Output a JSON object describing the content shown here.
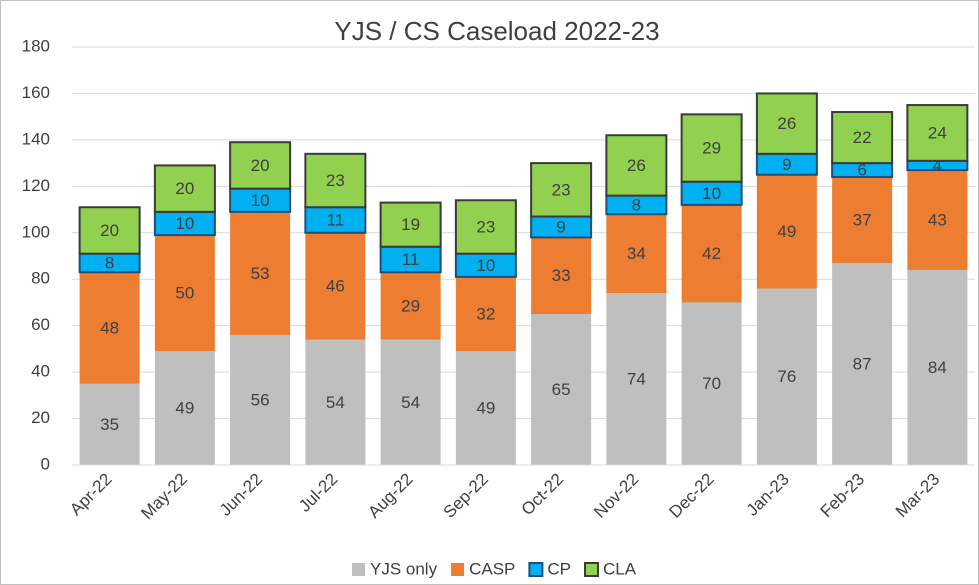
{
  "chart_data": {
    "type": "stacked_bar",
    "title": "YJS / CS Caseload 2022-23",
    "categories": [
      "Apr-22",
      "May-22",
      "Jun-22",
      "Jul-22",
      "Aug-22",
      "Sep-22",
      "Oct-22",
      "Nov-22",
      "Dec-22",
      "Jan-23",
      "Feb-23",
      "Mar-23"
    ],
    "series": [
      {
        "name": "YJS only",
        "color": "#bfbfbf",
        "values": [
          35,
          49,
          56,
          54,
          54,
          49,
          65,
          74,
          70,
          76,
          87,
          84
        ]
      },
      {
        "name": "CASP",
        "color": "#ed7d31",
        "values": [
          48,
          50,
          53,
          46,
          29,
          32,
          33,
          34,
          42,
          49,
          37,
          43
        ]
      },
      {
        "name": "CP",
        "color": "#00b0f0",
        "values": [
          8,
          10,
          10,
          11,
          11,
          10,
          9,
          8,
          10,
          9,
          6,
          4
        ]
      },
      {
        "name": "CLA",
        "color": "#92d050",
        "values": [
          20,
          20,
          20,
          23,
          19,
          23,
          23,
          26,
          29,
          26,
          22,
          24
        ]
      }
    ],
    "ylim": [
      0,
      180
    ],
    "yticks": [
      0,
      20,
      40,
      60,
      80,
      100,
      120,
      140,
      160,
      180
    ],
    "grid": true,
    "legend": "bottom"
  }
}
